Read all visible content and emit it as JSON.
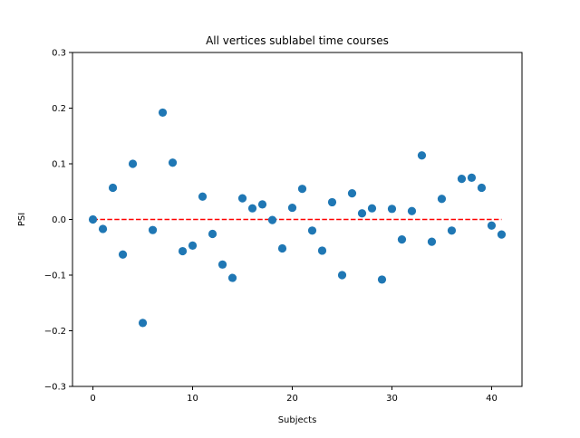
{
  "chart_data": {
    "type": "scatter",
    "title": "All vertices sublabel time courses",
    "xlabel": "Subjects",
    "ylabel": "PSI",
    "xlim": [
      -2.05,
      43.05
    ],
    "ylim": [
      -0.3,
      0.3
    ],
    "xticks": [
      0,
      10,
      20,
      30,
      40
    ],
    "yticks": [
      -0.3,
      -0.2,
      -0.1,
      0.0,
      0.1,
      0.2,
      0.3
    ],
    "xtick_labels": [
      "0",
      "10",
      "20",
      "30",
      "40"
    ],
    "ytick_labels": [
      "−0.3",
      "−0.2",
      "−0.1",
      "0.0",
      "0.1",
      "0.2",
      "0.3"
    ],
    "grid": false,
    "point_color": "#1f77b4",
    "x": [
      0,
      1,
      2,
      3,
      4,
      5,
      6,
      7,
      8,
      9,
      10,
      11,
      12,
      13,
      14,
      15,
      16,
      17,
      18,
      19,
      20,
      21,
      22,
      23,
      24,
      25,
      26,
      27,
      28,
      29,
      30,
      31,
      32,
      33,
      34,
      35,
      36,
      37,
      38,
      39,
      40,
      41
    ],
    "y": [
      0.0,
      -0.017,
      0.057,
      -0.063,
      0.1,
      -0.186,
      -0.019,
      0.192,
      0.102,
      -0.057,
      -0.047,
      0.041,
      -0.026,
      -0.081,
      -0.105,
      0.038,
      0.02,
      0.027,
      -0.001,
      -0.052,
      0.021,
      0.055,
      -0.02,
      -0.056,
      0.031,
      -0.1,
      0.047,
      0.011,
      0.02,
      -0.108,
      0.019,
      -0.036,
      0.015,
      0.115,
      -0.04,
      0.037,
      -0.02,
      0.073,
      0.075,
      0.057,
      -0.011,
      -0.027
    ],
    "reference_line": {
      "y": 0.0,
      "x_start": 0,
      "x_end": 41,
      "style": "dashed",
      "color": "#ff0000"
    }
  }
}
